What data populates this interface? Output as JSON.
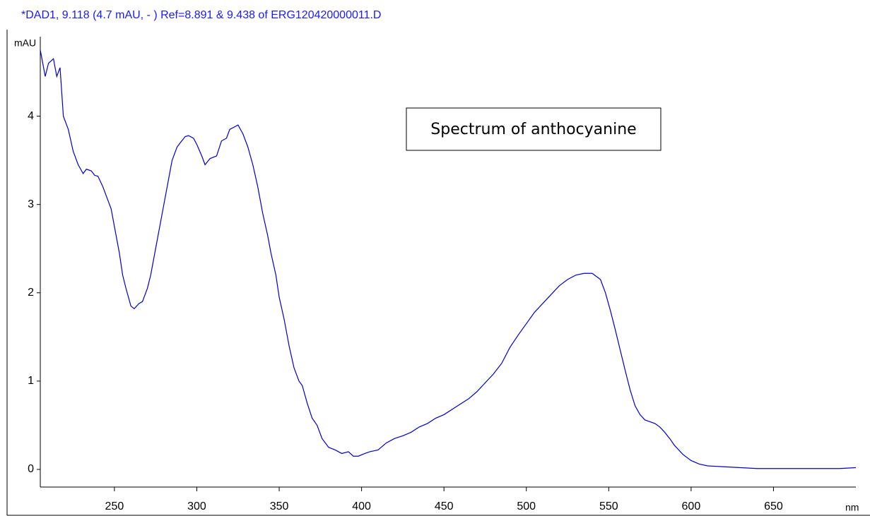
{
  "chart_data": {
    "type": "line",
    "title": "*DAD1, 9.118 (4.7 mAU, - ) Ref=8.891 & 9.438 of ERG120420000011.D",
    "y_label": "mAU",
    "x_label": "nm",
    "annotation": "Spectrum of anthocyanine",
    "color": "#0000cc",
    "xlim": [
      205,
      700
    ],
    "ylim": [
      -0.2,
      4.9
    ],
    "xticks": [
      250,
      300,
      350,
      400,
      450,
      500,
      550,
      600,
      650
    ],
    "yticks": [
      0,
      1,
      2,
      3,
      4
    ],
    "grid": false,
    "x": [
      205,
      208,
      210,
      213,
      215,
      217,
      219,
      222,
      225,
      228,
      231,
      233,
      236,
      238,
      240,
      243,
      245,
      248,
      250,
      253,
      255,
      257,
      260,
      262,
      265,
      267,
      270,
      272,
      275,
      278,
      280,
      283,
      285,
      288,
      290,
      293,
      295,
      298,
      300,
      303,
      305,
      308,
      312,
      315,
      318,
      320,
      323,
      325,
      328,
      331,
      334,
      337,
      340,
      343,
      345,
      348,
      350,
      353,
      356,
      359,
      362,
      364,
      367,
      370,
      373,
      376,
      380,
      384,
      388,
      392,
      395,
      398,
      402,
      405,
      410,
      415,
      420,
      425,
      430,
      435,
      440,
      445,
      450,
      455,
      460,
      465,
      470,
      475,
      480,
      485,
      490,
      495,
      500,
      505,
      510,
      515,
      520,
      525,
      530,
      535,
      540,
      545,
      548,
      551,
      554,
      557,
      560,
      563,
      566,
      569,
      572,
      575,
      578,
      581,
      584,
      587,
      590,
      595,
      600,
      605,
      610,
      620,
      630,
      640,
      650,
      660,
      670,
      680,
      690,
      700
    ],
    "values": [
      4.75,
      4.45,
      4.6,
      4.65,
      4.45,
      4.55,
      4.0,
      3.85,
      3.6,
      3.45,
      3.35,
      3.4,
      3.38,
      3.33,
      3.32,
      3.2,
      3.1,
      2.95,
      2.75,
      2.45,
      2.2,
      2.05,
      1.85,
      1.82,
      1.88,
      1.9,
      2.05,
      2.2,
      2.5,
      2.8,
      3.0,
      3.3,
      3.5,
      3.65,
      3.7,
      3.77,
      3.78,
      3.75,
      3.68,
      3.55,
      3.45,
      3.52,
      3.55,
      3.72,
      3.75,
      3.85,
      3.88,
      3.9,
      3.8,
      3.65,
      3.45,
      3.2,
      2.9,
      2.65,
      2.45,
      2.2,
      1.95,
      1.7,
      1.4,
      1.15,
      1.0,
      0.95,
      0.75,
      0.58,
      0.5,
      0.35,
      0.25,
      0.22,
      0.18,
      0.2,
      0.15,
      0.15,
      0.18,
      0.2,
      0.22,
      0.3,
      0.35,
      0.38,
      0.42,
      0.48,
      0.52,
      0.58,
      0.62,
      0.68,
      0.74,
      0.8,
      0.88,
      0.98,
      1.08,
      1.2,
      1.38,
      1.52,
      1.65,
      1.78,
      1.88,
      1.98,
      2.08,
      2.15,
      2.2,
      2.22,
      2.22,
      2.15,
      2.0,
      1.8,
      1.58,
      1.35,
      1.12,
      0.9,
      0.72,
      0.62,
      0.56,
      0.54,
      0.52,
      0.48,
      0.42,
      0.35,
      0.27,
      0.17,
      0.1,
      0.06,
      0.04,
      0.03,
      0.02,
      0.01,
      0.01,
      0.01,
      0.01,
      0.01,
      0.01,
      0.02
    ]
  }
}
